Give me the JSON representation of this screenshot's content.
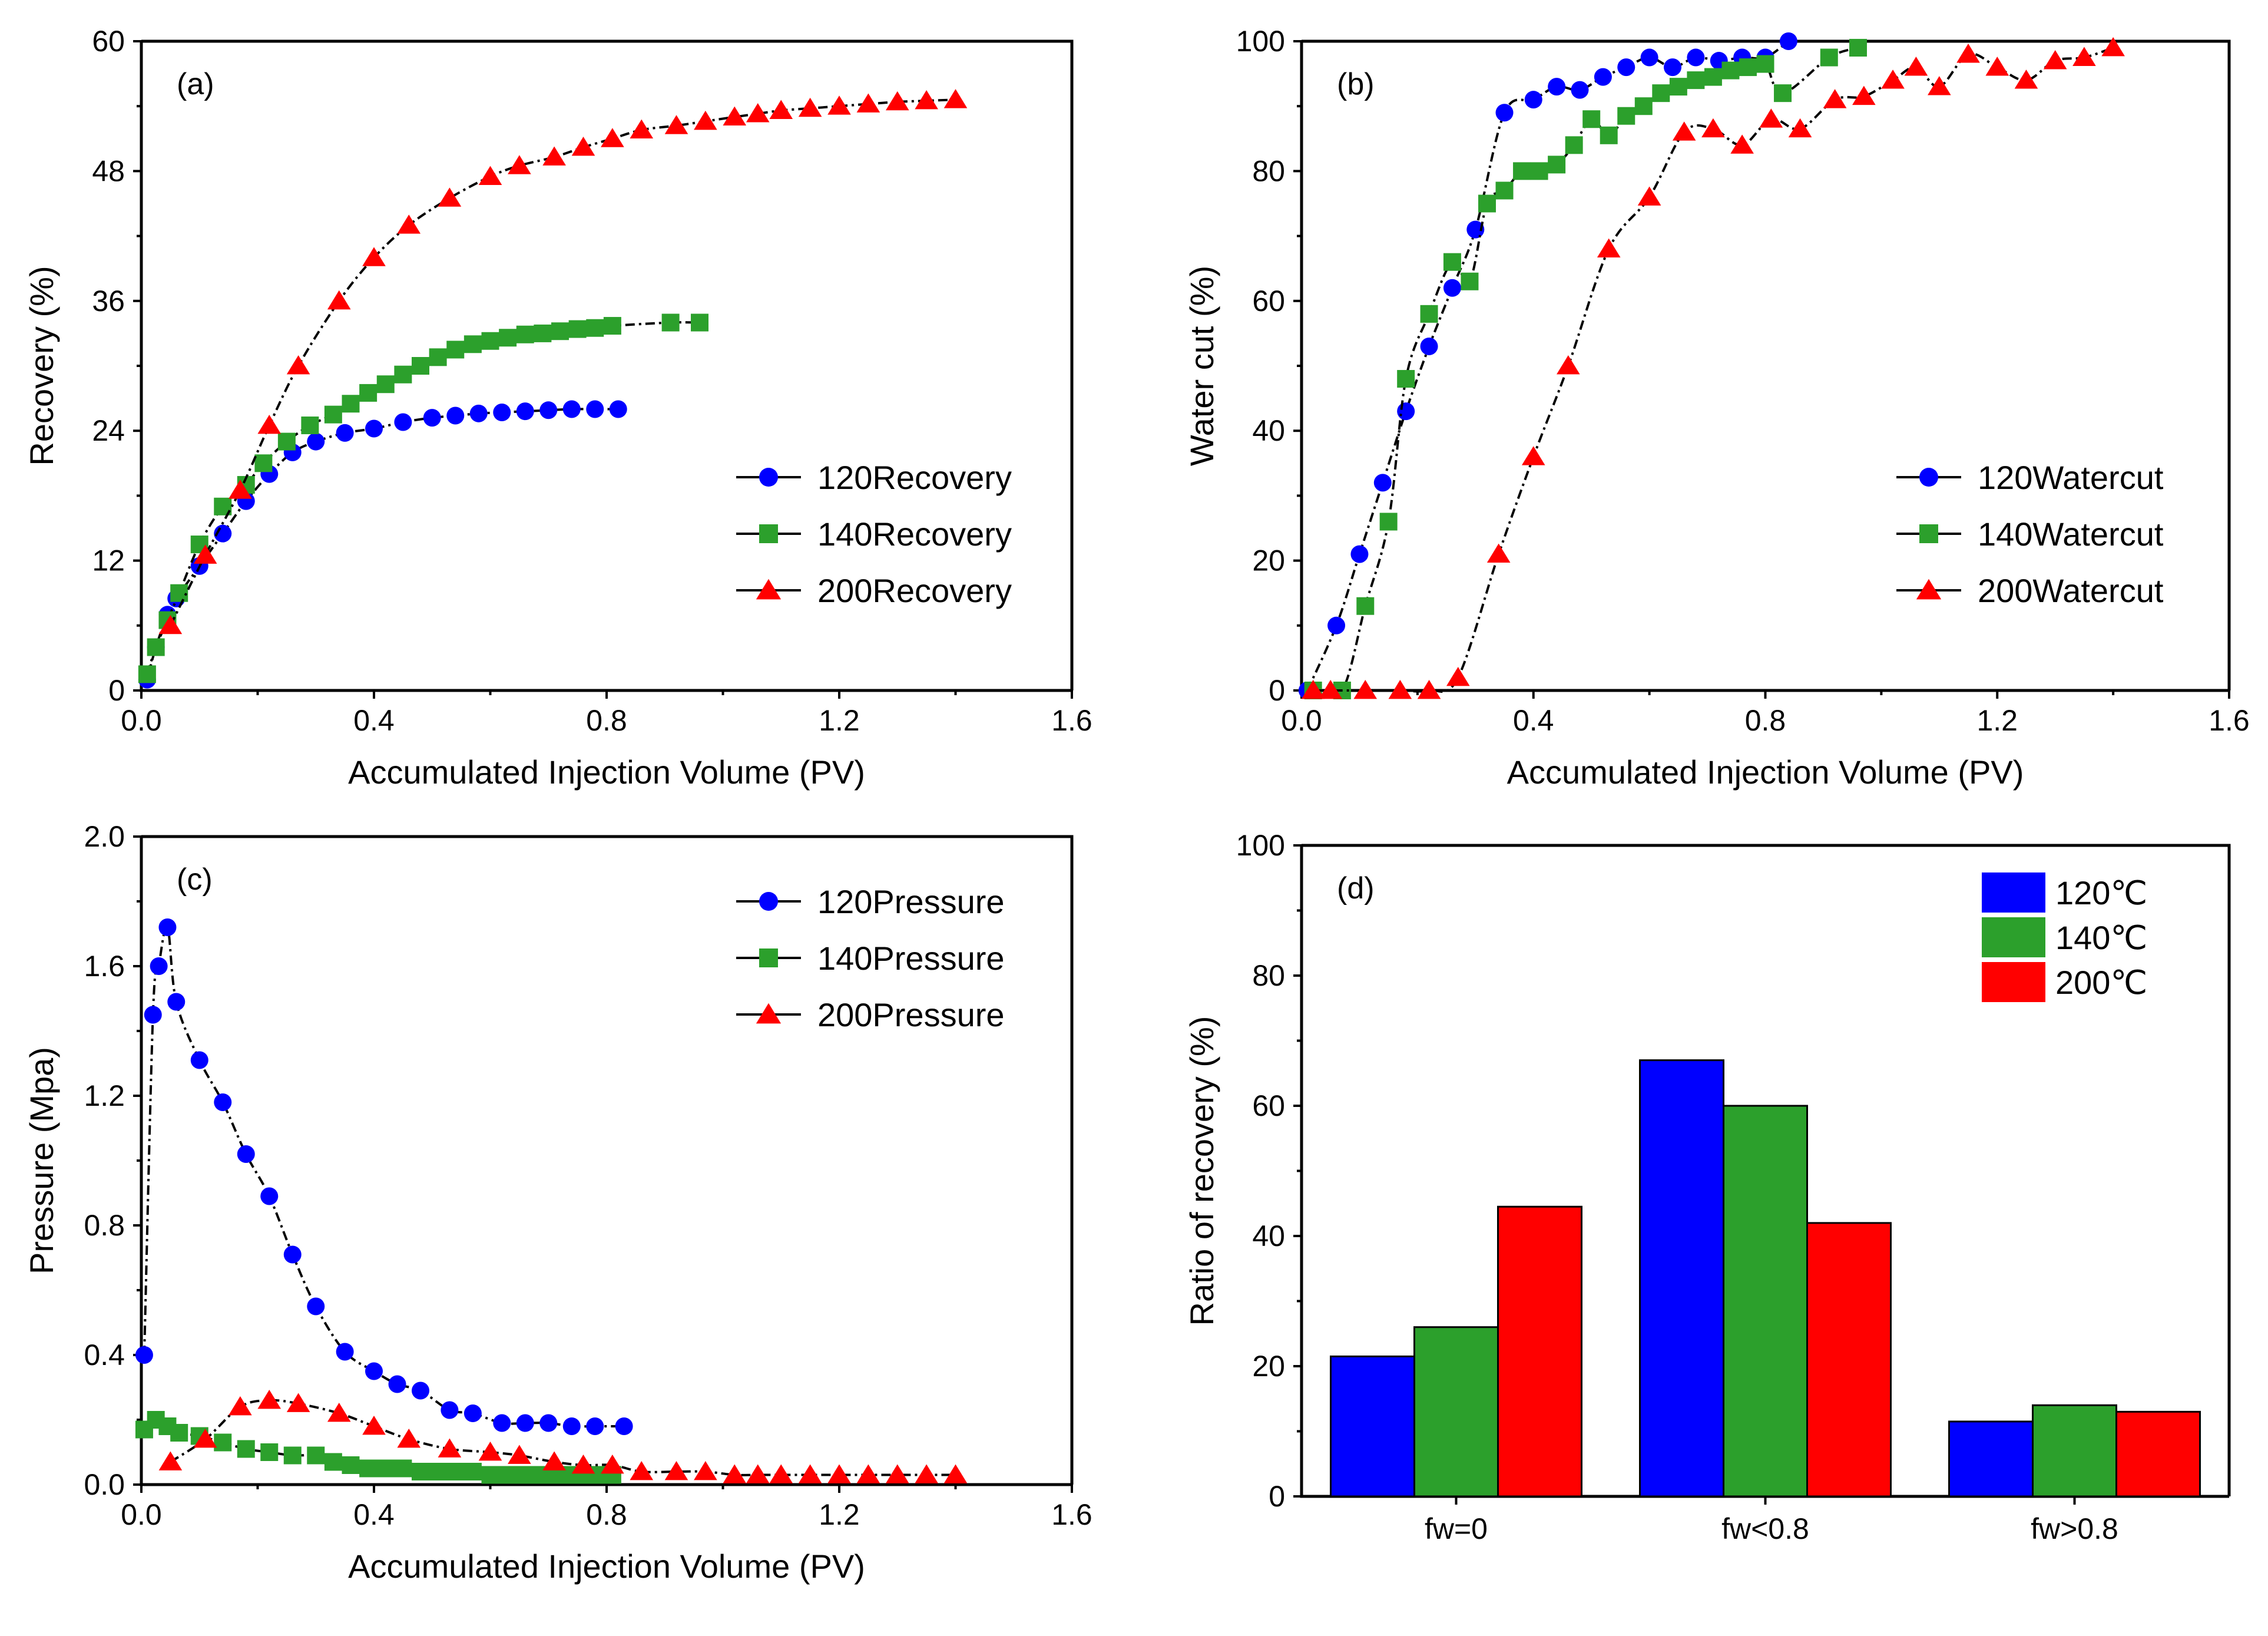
{
  "chart_data": [
    {
      "type": "scatter",
      "panel_label": "(a)",
      "xlabel": "Accumulated Injection Volume (PV)",
      "ylabel": "Recovery (%)",
      "xlim": [
        0,
        1.6
      ],
      "ylim": [
        0,
        60
      ],
      "xticks": [
        "0.0",
        "0.4",
        "0.8",
        "1.2",
        "1.6"
      ],
      "yticks": [
        "0",
        "12",
        "24",
        "36",
        "48",
        "60"
      ],
      "legend_position": "center-right",
      "series": [
        {
          "name": "120Recovery",
          "marker": "circle",
          "color": "#0000ff",
          "x": [
            0.01,
            0.025,
            0.045,
            0.06,
            0.1,
            0.14,
            0.18,
            0.22,
            0.26,
            0.3,
            0.35,
            0.4,
            0.45,
            0.5,
            0.54,
            0.58,
            0.62,
            0.66,
            0.7,
            0.74,
            0.78,
            0.82
          ],
          "y": [
            1,
            4,
            7,
            8.5,
            11.5,
            14.5,
            17.5,
            20,
            22,
            23,
            23.8,
            24.2,
            24.8,
            25.2,
            25.4,
            25.6,
            25.7,
            25.8,
            25.9,
            26,
            26,
            26
          ]
        },
        {
          "name": "140Recovery",
          "marker": "square",
          "color": "#2ca02c",
          "x": [
            0.01,
            0.025,
            0.045,
            0.065,
            0.1,
            0.14,
            0.18,
            0.21,
            0.25,
            0.29,
            0.33,
            0.36,
            0.39,
            0.42,
            0.45,
            0.48,
            0.51,
            0.54,
            0.57,
            0.6,
            0.63,
            0.66,
            0.69,
            0.72,
            0.75,
            0.78,
            0.81,
            0.91,
            0.96
          ],
          "y": [
            1.5,
            4,
            6.5,
            9,
            13.5,
            17,
            19,
            21,
            23,
            24.5,
            25.5,
            26.5,
            27.5,
            28.3,
            29.2,
            30,
            30.8,
            31.5,
            32,
            32.3,
            32.6,
            32.9,
            33,
            33.2,
            33.4,
            33.5,
            33.7,
            34,
            34
          ]
        },
        {
          "name": "200Recovery",
          "marker": "triangle",
          "color": "#ff0000",
          "x": [
            0.05,
            0.11,
            0.17,
            0.22,
            0.27,
            0.34,
            0.4,
            0.46,
            0.53,
            0.6,
            0.65,
            0.71,
            0.76,
            0.81,
            0.86,
            0.92,
            0.97,
            1.02,
            1.06,
            1.1,
            1.15,
            1.2,
            1.25,
            1.3,
            1.35,
            1.4
          ],
          "y": [
            6,
            12.5,
            18.5,
            24.5,
            30,
            36,
            40,
            43,
            45.5,
            47.5,
            48.5,
            49.3,
            50.2,
            51,
            51.8,
            52.2,
            52.6,
            53,
            53.3,
            53.6,
            53.8,
            54,
            54.2,
            54.4,
            54.5,
            54.6
          ]
        }
      ]
    },
    {
      "type": "scatter",
      "panel_label": "(b)",
      "xlabel": "Accumulated Injection Volume (PV)",
      "ylabel": "Water cut (%)",
      "xlim": [
        0,
        1.6
      ],
      "ylim": [
        0,
        100
      ],
      "xticks": [
        "0.0",
        "0.4",
        "0.8",
        "1.2",
        "1.6"
      ],
      "yticks": [
        "0",
        "20",
        "40",
        "60",
        "80",
        "100"
      ],
      "legend_position": "center-right",
      "series": [
        {
          "name": "120Watercut",
          "marker": "circle",
          "color": "#0000ff",
          "x": [
            0.01,
            0.06,
            0.1,
            0.14,
            0.18,
            0.22,
            0.26,
            0.3,
            0.35,
            0.4,
            0.44,
            0.48,
            0.52,
            0.56,
            0.6,
            0.64,
            0.68,
            0.72,
            0.76,
            0.8,
            0.84
          ],
          "y": [
            0,
            10,
            21,
            32,
            43,
            53,
            62,
            71,
            89,
            91,
            93,
            92.5,
            94.5,
            96,
            97.5,
            96,
            97.5,
            97,
            97.5,
            97.5,
            100
          ]
        },
        {
          "name": "140Watercut",
          "marker": "square",
          "color": "#2ca02c",
          "x": [
            0.02,
            0.07,
            0.11,
            0.15,
            0.18,
            0.22,
            0.26,
            0.29,
            0.32,
            0.35,
            0.38,
            0.41,
            0.44,
            0.47,
            0.5,
            0.53,
            0.56,
            0.59,
            0.62,
            0.65,
            0.68,
            0.71,
            0.74,
            0.77,
            0.8,
            0.83,
            0.91,
            0.96
          ],
          "y": [
            0,
            0,
            13,
            26,
            48,
            58,
            66,
            63,
            75,
            77,
            80,
            80,
            81,
            84,
            88,
            85.5,
            88.5,
            90,
            92,
            93,
            94,
            94.5,
            95.5,
            96,
            96.5,
            92,
            97.5,
            99
          ]
        },
        {
          "name": "200Watercut",
          "marker": "triangle",
          "color": "#ff0000",
          "x": [
            0.02,
            0.05,
            0.11,
            0.17,
            0.22,
            0.27,
            0.34,
            0.4,
            0.46,
            0.53,
            0.6,
            0.66,
            0.71,
            0.76,
            0.81,
            0.86,
            0.92,
            0.97,
            1.02,
            1.06,
            1.1,
            1.15,
            1.2,
            1.25,
            1.3,
            1.35,
            1.4
          ],
          "y": [
            0,
            0,
            0,
            0,
            0,
            2,
            21,
            36,
            50,
            68,
            76,
            86,
            86.5,
            84,
            88,
            86.5,
            91,
            91.5,
            94,
            96,
            93,
            98,
            96,
            94,
            97,
            97.5,
            99
          ]
        }
      ]
    },
    {
      "type": "scatter",
      "panel_label": "(c)",
      "xlabel": "Accumulated Injection Volume (PV)",
      "ylabel": "Pressure (Mpa)",
      "xlim": [
        0,
        1.6
      ],
      "ylim": [
        0,
        2.0
      ],
      "xticks": [
        "0.0",
        "0.4",
        "0.8",
        "1.2",
        "1.6"
      ],
      "yticks": [
        "0.0",
        "0.4",
        "0.8",
        "1.2",
        "1.6",
        "2.0"
      ],
      "legend_position": "top-right",
      "series": [
        {
          "name": "120Pressure",
          "marker": "circle",
          "color": "#0000ff",
          "x": [
            0.005,
            0.02,
            0.03,
            0.045,
            0.06,
            0.1,
            0.14,
            0.18,
            0.22,
            0.26,
            0.3,
            0.35,
            0.4,
            0.44,
            0.48,
            0.53,
            0.57,
            0.62,
            0.66,
            0.7,
            0.74,
            0.78,
            0.83
          ],
          "y": [
            0.4,
            1.45,
            1.6,
            1.72,
            1.49,
            1.31,
            1.18,
            1.02,
            0.89,
            0.71,
            0.55,
            0.41,
            0.35,
            0.31,
            0.29,
            0.23,
            0.22,
            0.19,
            0.19,
            0.19,
            0.18,
            0.18,
            0.18
          ]
        },
        {
          "name": "140Pressure",
          "marker": "square",
          "color": "#2ca02c",
          "x": [
            0.005,
            0.025,
            0.045,
            0.065,
            0.1,
            0.14,
            0.18,
            0.22,
            0.26,
            0.3,
            0.33,
            0.36,
            0.39,
            0.42,
            0.45,
            0.48,
            0.51,
            0.54,
            0.57,
            0.6,
            0.63,
            0.66,
            0.69,
            0.72,
            0.75,
            0.78,
            0.81
          ],
          "y": [
            0.17,
            0.2,
            0.18,
            0.16,
            0.15,
            0.13,
            0.11,
            0.1,
            0.09,
            0.09,
            0.07,
            0.06,
            0.05,
            0.05,
            0.05,
            0.04,
            0.04,
            0.04,
            0.04,
            0.03,
            0.03,
            0.03,
            0.03,
            0.03,
            0.03,
            0.03,
            0.03
          ]
        },
        {
          "name": "200Pressure",
          "marker": "triangle",
          "color": "#ff0000",
          "x": [
            0.05,
            0.11,
            0.17,
            0.22,
            0.27,
            0.34,
            0.4,
            0.46,
            0.53,
            0.6,
            0.65,
            0.71,
            0.76,
            0.81,
            0.86,
            0.92,
            0.97,
            1.02,
            1.06,
            1.1,
            1.15,
            1.2,
            1.25,
            1.3,
            1.35,
            1.4
          ],
          "y": [
            0.07,
            0.14,
            0.24,
            0.26,
            0.25,
            0.22,
            0.18,
            0.14,
            0.11,
            0.1,
            0.09,
            0.07,
            0.06,
            0.06,
            0.04,
            0.04,
            0.04,
            0.03,
            0.03,
            0.03,
            0.03,
            0.03,
            0.03,
            0.03,
            0.03,
            0.03
          ]
        }
      ]
    },
    {
      "type": "bar",
      "panel_label": "(d)",
      "xlabel": "",
      "ylabel": "Ratio of recovery (%)",
      "ylim": [
        0,
        100
      ],
      "yticks": [
        "0",
        "20",
        "40",
        "60",
        "80",
        "100"
      ],
      "categories": [
        "fw=0",
        "fw<0.8",
        "fw>0.8"
      ],
      "legend_position": "top-right",
      "series": [
        {
          "name": "120℃",
          "color": "#0000ff",
          "values": [
            21.5,
            67,
            11.5
          ]
        },
        {
          "name": "140℃",
          "color": "#2ca02c",
          "values": [
            26,
            60,
            14
          ]
        },
        {
          "name": "200℃",
          "color": "#ff0000",
          "values": [
            44.5,
            42,
            13
          ]
        }
      ]
    }
  ]
}
